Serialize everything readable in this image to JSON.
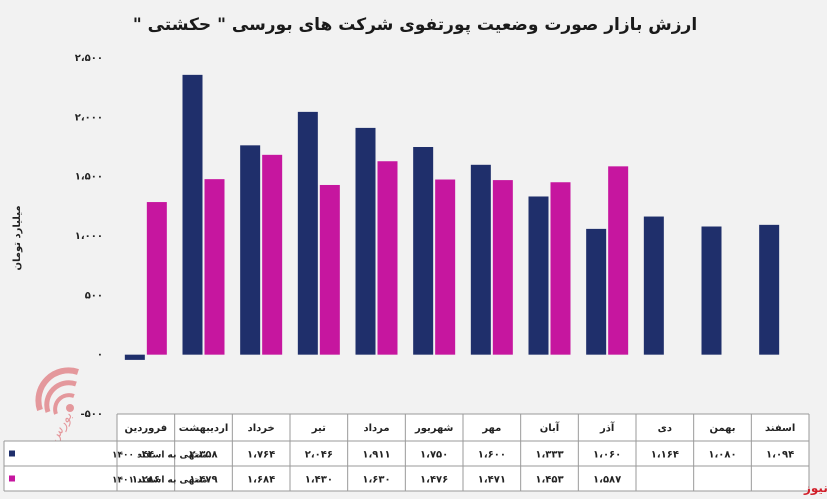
{
  "chart_data": {
    "type": "bar",
    "title": "ارزش بازار صورت وضعیت پورتفوی شرکت های بورسی \" حکشتی \"",
    "ylabel": "میلیارد تومان",
    "ylim": [
      -500,
      2500
    ],
    "yticks": [
      -500,
      0,
      500,
      1000,
      1500,
      2000,
      2500
    ],
    "ytick_labels": [
      "-۵۰۰",
      "۰",
      "۵۰۰",
      "۱،۰۰۰",
      "۱،۵۰۰",
      "۲،۰۰۰",
      "۲،۵۰۰"
    ],
    "categories": [
      "فروردین",
      "اردیبهشت",
      "خرداد",
      "تیر",
      "مرداد",
      "شهریور",
      "مهر",
      "آبان",
      "آذر",
      "دی",
      "بهمن",
      "اسفند"
    ],
    "series": [
      {
        "name": "منتهی به اسفند ۱۴۰۰",
        "color": "#1f2f6b",
        "values": [
          -44,
          2358,
          1764,
          2046,
          1911,
          1750,
          1600,
          1333,
          1060,
          1164,
          1080,
          1094
        ],
        "labels": [
          "-۴۴",
          "۲،۳۵۸",
          "۱،۷۶۴",
          "۲،۰۴۶",
          "۱،۹۱۱",
          "۱،۷۵۰",
          "۱،۶۰۰",
          "۱،۳۳۳",
          "۱،۰۶۰",
          "۱،۱۶۴",
          "۱،۰۸۰",
          "۱،۰۹۴"
        ]
      },
      {
        "name": "منتهی به اسفند ۱۴۰۱",
        "color": "#c6169f",
        "values": [
          1286,
          1479,
          1684,
          1430,
          1630,
          1476,
          1471,
          1453,
          1587,
          null,
          null,
          null
        ],
        "labels": [
          "۱،۲۸۶",
          "۱،۴۷۹",
          "۱،۶۸۴",
          "۱،۴۳۰",
          "۱،۶۳۰",
          "۱،۴۷۶",
          "۱،۴۷۱",
          "۱،۴۵۳",
          "۱،۵۸۷",
          "",
          "",
          ""
        ]
      }
    ],
    "grid": false,
    "legend": "data-table"
  },
  "watermark": "بورس نیوز",
  "brand_label": "بورس نیوز",
  "colors": {
    "background": "#f2f2f2",
    "brand": "#d11f2a"
  }
}
